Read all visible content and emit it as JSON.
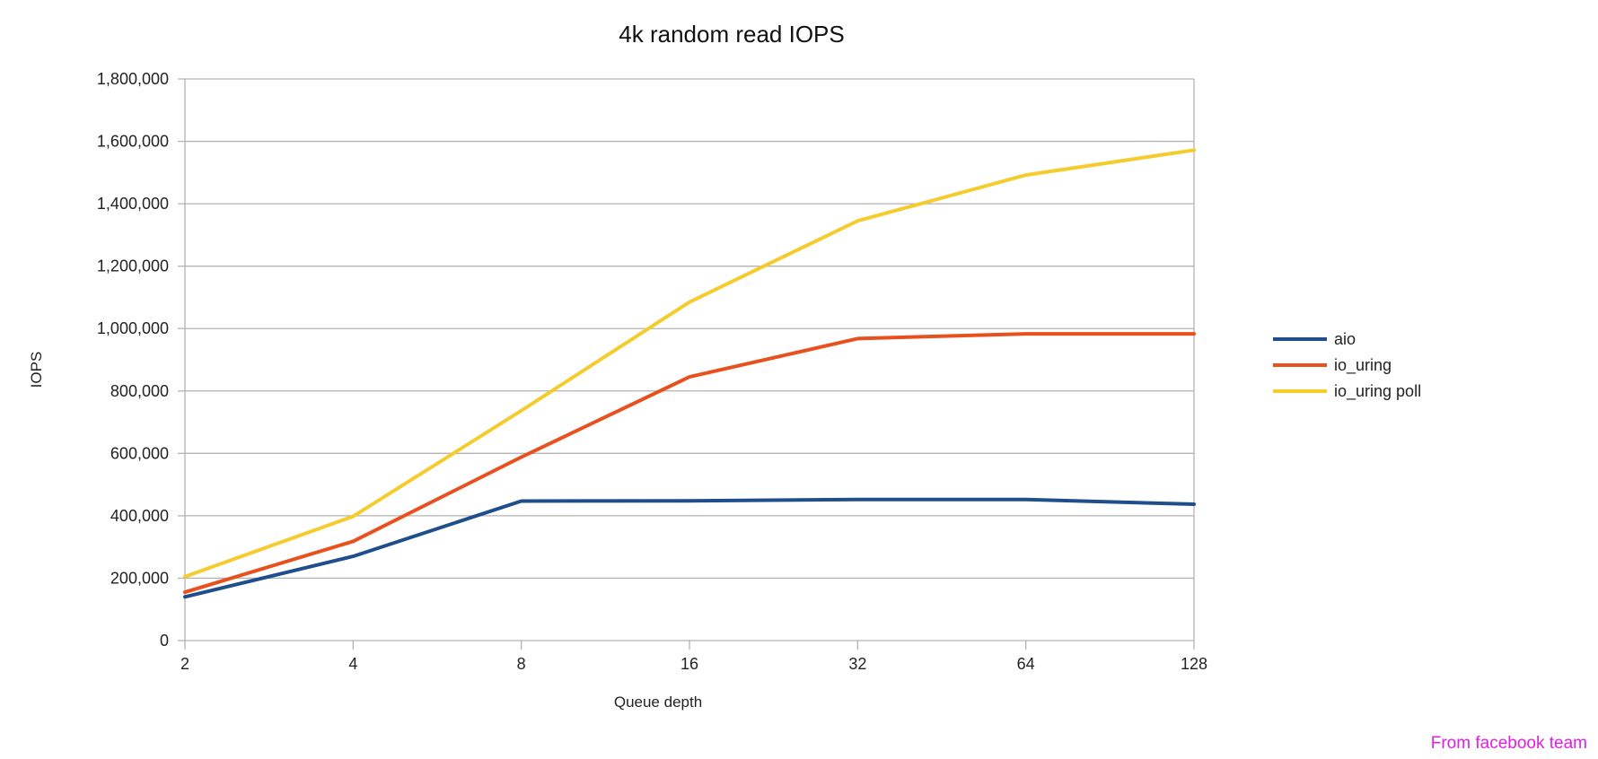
{
  "chart_data": {
    "type": "line",
    "title": "4k random read IOPS",
    "xlabel": "Queue depth",
    "ylabel": "IOPS",
    "x_scale": "log2",
    "categories": [
      "2",
      "4",
      "8",
      "16",
      "32",
      "64",
      "128"
    ],
    "x": [
      2,
      4,
      8,
      16,
      32,
      64,
      128
    ],
    "ylim": [
      0,
      1800000
    ],
    "yticks": [
      "0",
      "200,000",
      "400,000",
      "600,000",
      "800,000",
      "1,000,000",
      "1,200,000",
      "1,400,000",
      "1,600,000",
      "1,800,000"
    ],
    "grid": true,
    "legend_position": "right",
    "series": [
      {
        "name": "aio",
        "color": "#1f4e8c",
        "values": [
          140000,
          270000,
          447000,
          448000,
          452000,
          452000,
          437000
        ]
      },
      {
        "name": "io_uring",
        "color": "#e8501e",
        "values": [
          155000,
          318000,
          588000,
          845000,
          968000,
          983000,
          983000
        ]
      },
      {
        "name": "io_uring poll",
        "color": "#f5cc2e",
        "values": [
          205000,
          398000,
          737000,
          1085000,
          1345000,
          1492000,
          1572000
        ]
      }
    ]
  },
  "credit": "From facebook team"
}
